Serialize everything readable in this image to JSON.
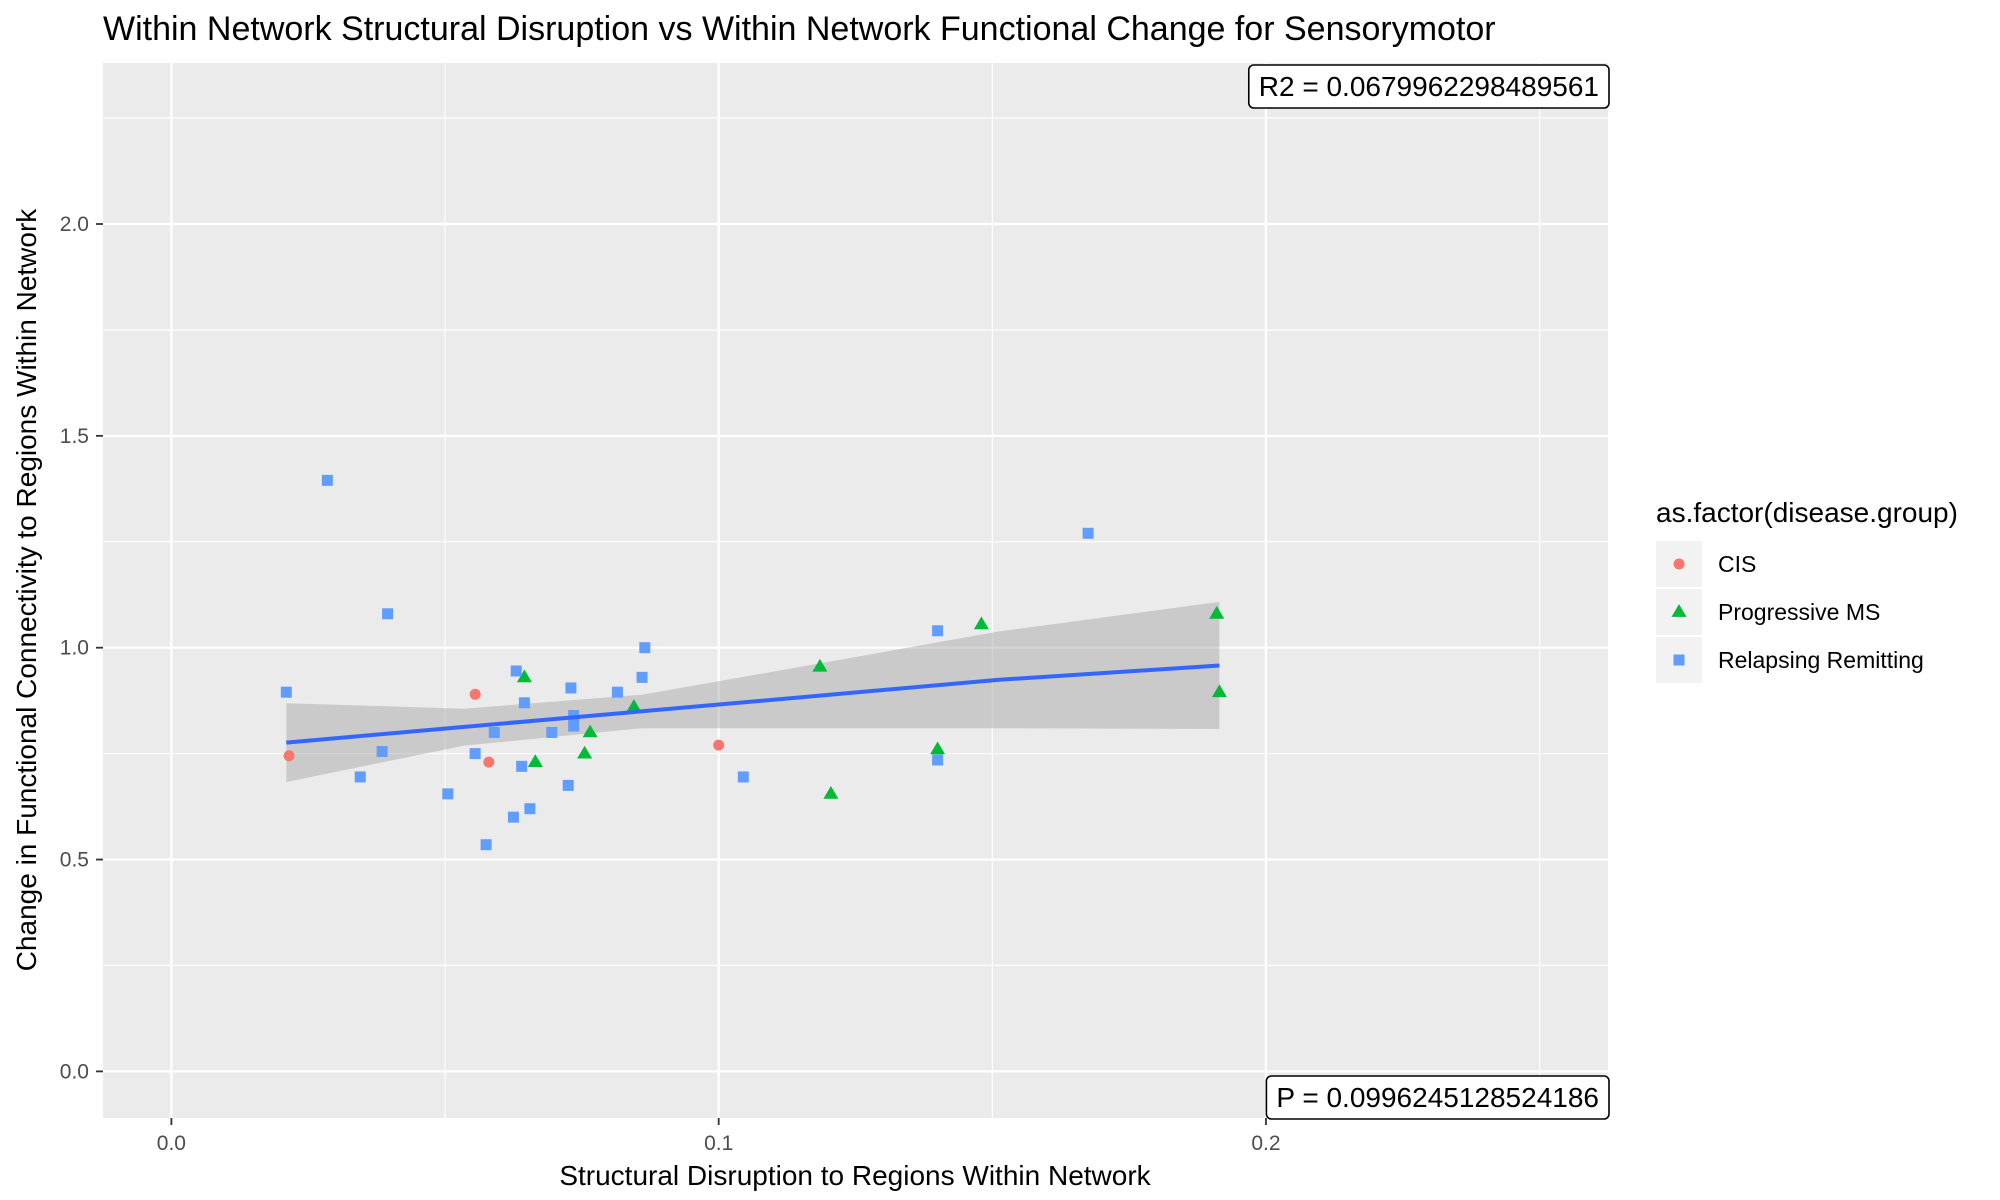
{
  "chart_data": {
    "type": "scatter",
    "title": "Within Network Structural Disruption vs Within Network Functional Change for Sensorymotor",
    "xlabel": "Structural Disruption to Regions Within Network",
    "ylabel": "Change in Functional Connectivity to Regions Within Network",
    "xlim": [
      -0.0125,
      0.2625
    ],
    "ylim": [
      -0.11,
      2.38
    ],
    "x_ticks": [
      0.0,
      0.1,
      0.2
    ],
    "x_tick_labels": [
      "0.0",
      "0.1",
      "0.2"
    ],
    "y_ticks": [
      0.0,
      0.5,
      1.0,
      1.5,
      2.0
    ],
    "y_tick_labels": [
      "0.0",
      "0.5",
      "1.0",
      "1.5",
      "2.0"
    ],
    "grid": true,
    "legend": {
      "title": "as.factor(disease.group)",
      "placement": "right"
    },
    "series": [
      {
        "name": "CIS",
        "shape": "circle",
        "color": "#F8766D",
        "points": [
          {
            "x": 0.0215,
            "y": 0.745
          },
          {
            "x": 0.0555,
            "y": 0.89
          },
          {
            "x": 0.058,
            "y": 0.73
          },
          {
            "x": 0.1,
            "y": 0.77
          }
        ]
      },
      {
        "name": "Progressive MS",
        "shape": "triangle",
        "color": "#00BA38",
        "points": [
          {
            "x": 0.0645,
            "y": 0.93
          },
          {
            "x": 0.0665,
            "y": 0.73
          },
          {
            "x": 0.0755,
            "y": 0.75
          },
          {
            "x": 0.0765,
            "y": 0.8
          },
          {
            "x": 0.0845,
            "y": 0.86
          },
          {
            "x": 0.1185,
            "y": 0.955
          },
          {
            "x": 0.1205,
            "y": 0.655
          },
          {
            "x": 0.14,
            "y": 0.76
          },
          {
            "x": 0.148,
            "y": 1.055
          },
          {
            "x": 0.191,
            "y": 1.08
          },
          {
            "x": 0.1915,
            "y": 0.895
          }
        ]
      },
      {
        "name": "Relapsing Remitting",
        "shape": "square",
        "color": "#619CFF",
        "points": [
          {
            "x": 0.021,
            "y": 0.895
          },
          {
            "x": 0.0285,
            "y": 1.395
          },
          {
            "x": 0.0345,
            "y": 0.695
          },
          {
            "x": 0.0385,
            "y": 0.755
          },
          {
            "x": 0.0395,
            "y": 1.08
          },
          {
            "x": 0.0505,
            "y": 0.655
          },
          {
            "x": 0.0555,
            "y": 0.75
          },
          {
            "x": 0.0575,
            "y": 0.535
          },
          {
            "x": 0.059,
            "y": 0.8
          },
          {
            "x": 0.0625,
            "y": 0.6
          },
          {
            "x": 0.063,
            "y": 0.945
          },
          {
            "x": 0.064,
            "y": 0.72
          },
          {
            "x": 0.0645,
            "y": 0.87
          },
          {
            "x": 0.0655,
            "y": 0.62
          },
          {
            "x": 0.0695,
            "y": 0.8
          },
          {
            "x": 0.0725,
            "y": 0.675
          },
          {
            "x": 0.073,
            "y": 0.905
          },
          {
            "x": 0.0735,
            "y": 0.815
          },
          {
            "x": 0.0735,
            "y": 0.84
          },
          {
            "x": 0.0815,
            "y": 0.895
          },
          {
            "x": 0.086,
            "y": 0.93
          },
          {
            "x": 0.0865,
            "y": 1.0
          },
          {
            "x": 0.1045,
            "y": 0.695
          },
          {
            "x": 0.14,
            "y": 1.04
          },
          {
            "x": 0.14,
            "y": 0.735
          },
          {
            "x": 0.1675,
            "y": 1.27
          }
        ]
      }
    ],
    "trend": {
      "color": "#3366FF",
      "band_color": "#999999",
      "x": [
        0.021,
        0.0535,
        0.086,
        0.1185,
        0.151,
        0.1915
      ],
      "fit": [
        0.776,
        0.813,
        0.85,
        0.887,
        0.924,
        0.958
      ],
      "lower": [
        0.683,
        0.769,
        0.81,
        0.81,
        0.81,
        0.808
      ],
      "upper": [
        0.869,
        0.856,
        0.889,
        0.963,
        1.038,
        1.108
      ]
    },
    "annotations": {
      "r2_text": "R2 =  0.0679962298489561",
      "p_text": "P =  0.0996245128524186"
    }
  }
}
